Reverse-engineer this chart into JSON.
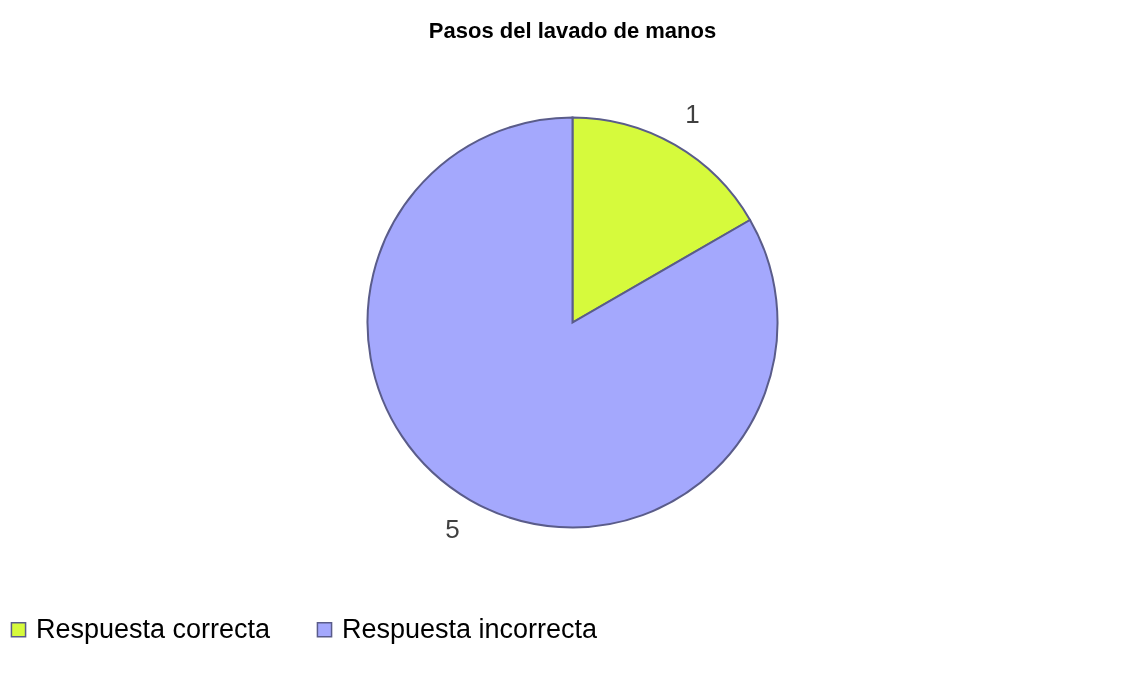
{
  "chart_data": {
    "type": "pie",
    "title": "Pasos del lavado de manos",
    "categories": [
      "Respuesta correcta",
      "Respuesta incorrecta"
    ],
    "values": [
      1,
      5
    ],
    "colors": [
      "#d6fa3c",
      "#a4a8fd"
    ],
    "data_labels": true,
    "legend": "bottom"
  }
}
